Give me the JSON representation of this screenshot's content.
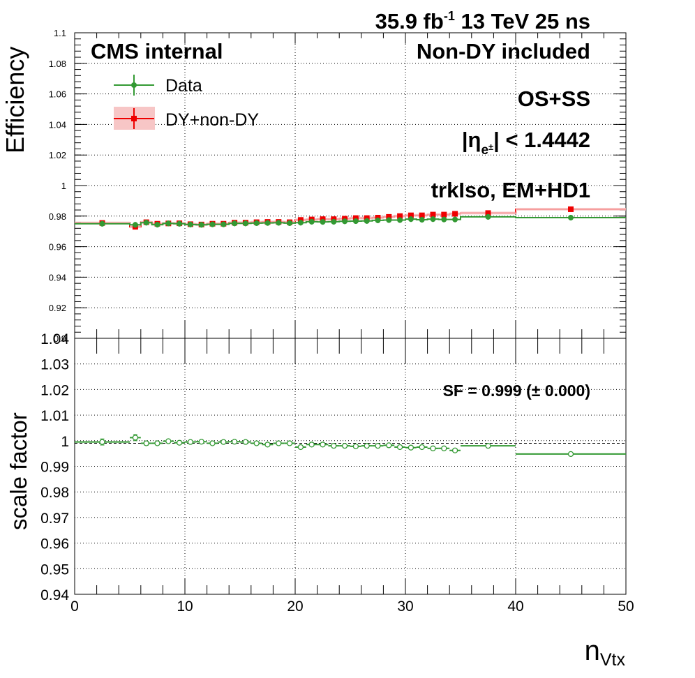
{
  "header": {
    "lumi_value": "35.9 fb",
    "lumi_exp": "-1",
    "energy": "13 TeV 25 ns"
  },
  "labels": {
    "experiment": "CMS internal",
    "sample": "Non-DY included",
    "charge": "OS+SS",
    "eta_prefix": "|η",
    "eta_sub": "e",
    "eta_subsup": "±",
    "eta_suffix": "| < 1.4442",
    "selection": "trkIso, EM+HD1",
    "sf_text": "SF = 0.999 (± 0.000)"
  },
  "colors": {
    "data": "#339933",
    "mc": "#ee0000",
    "mc_band": "#f7c6c6",
    "axis": "#000000"
  },
  "chart_data": [
    {
      "type": "scatter",
      "panel": "top",
      "ylabel": "Efficiency",
      "xlim": [
        0,
        50
      ],
      "ylim": [
        0.9,
        1.1
      ],
      "yticks": [
        "0.9",
        "0.92",
        "0.94",
        "0.96",
        "0.98",
        "1",
        "1.02",
        "1.04",
        "1.06",
        "1.08",
        "1.1"
      ],
      "legend": {
        "position": "top-left",
        "entries": [
          "Data",
          "DY+non-DY"
        ]
      },
      "bins": [
        [
          0,
          5
        ],
        [
          5,
          6
        ],
        [
          6,
          7
        ],
        [
          7,
          8
        ],
        [
          8,
          9
        ],
        [
          9,
          10
        ],
        [
          10,
          11
        ],
        [
          11,
          12
        ],
        [
          12,
          13
        ],
        [
          13,
          14
        ],
        [
          14,
          15
        ],
        [
          15,
          16
        ],
        [
          16,
          17
        ],
        [
          17,
          18
        ],
        [
          18,
          19
        ],
        [
          19,
          20
        ],
        [
          20,
          21
        ],
        [
          21,
          22
        ],
        [
          22,
          23
        ],
        [
          23,
          24
        ],
        [
          24,
          25
        ],
        [
          25,
          26
        ],
        [
          26,
          27
        ],
        [
          27,
          28
        ],
        [
          28,
          29
        ],
        [
          29,
          30
        ],
        [
          30,
          31
        ],
        [
          31,
          32
        ],
        [
          32,
          33
        ],
        [
          33,
          34
        ],
        [
          34,
          35
        ],
        [
          35,
          40
        ],
        [
          40,
          50
        ]
      ],
      "series": [
        {
          "name": "Data",
          "x": [
            2.5,
            5.5,
            6.5,
            7.5,
            8.5,
            9.5,
            10.5,
            11.5,
            12.5,
            13.5,
            14.5,
            15.5,
            16.5,
            17.5,
            18.5,
            19.5,
            20.5,
            21.5,
            22.5,
            23.5,
            24.5,
            25.5,
            26.5,
            27.5,
            28.5,
            29.5,
            30.5,
            31.5,
            32.5,
            33.5,
            34.5,
            37.5,
            45
          ],
          "y": [
            0.975,
            0.9743,
            0.9757,
            0.9744,
            0.9752,
            0.975,
            0.9745,
            0.9743,
            0.9746,
            0.9746,
            0.9752,
            0.9752,
            0.9754,
            0.9755,
            0.9756,
            0.9754,
            0.9757,
            0.9763,
            0.9762,
            0.9763,
            0.9766,
            0.9767,
            0.9768,
            0.9772,
            0.9774,
            0.9774,
            0.978,
            0.9776,
            0.978,
            0.9778,
            0.9778,
            0.9795,
            0.979
          ]
        },
        {
          "name": "DY+non-DY",
          "x": [
            2.5,
            5.5,
            6.5,
            7.5,
            8.5,
            9.5,
            10.5,
            11.5,
            12.5,
            13.5,
            14.5,
            15.5,
            16.5,
            17.5,
            18.5,
            19.5,
            20.5,
            21.5,
            22.5,
            23.5,
            24.5,
            25.5,
            26.5,
            27.5,
            28.5,
            29.5,
            30.5,
            31.5,
            32.5,
            33.5,
            34.5,
            37.5,
            45
          ],
          "y": [
            0.9755,
            0.973,
            0.976,
            0.975,
            0.9752,
            0.9753,
            0.9747,
            0.9745,
            0.975,
            0.975,
            0.9757,
            0.9757,
            0.976,
            0.9762,
            0.9762,
            0.976,
            0.9775,
            0.9778,
            0.978,
            0.978,
            0.9783,
            0.9787,
            0.9787,
            0.979,
            0.9795,
            0.98,
            0.9805,
            0.9805,
            0.981,
            0.981,
            0.9815,
            0.982,
            0.9845
          ]
        }
      ]
    },
    {
      "type": "scatter",
      "panel": "bottom",
      "ylabel": "scale factor",
      "xlabel_main": "n",
      "xlabel_sub": "Vtx",
      "xlim": [
        0,
        50
      ],
      "ylim": [
        0.94,
        1.04
      ],
      "xticks": [
        "0",
        "10",
        "20",
        "30",
        "40",
        "50"
      ],
      "yticks": [
        "0.94",
        "0.95",
        "0.96",
        "0.97",
        "0.98",
        "0.99",
        "1",
        "1.01",
        "1.02",
        "1.03",
        "1.04"
      ],
      "reference_line": 0.999,
      "series": [
        {
          "name": "SF",
          "x": [
            2.5,
            5.5,
            6.5,
            7.5,
            8.5,
            9.5,
            10.5,
            11.5,
            12.5,
            13.5,
            14.5,
            15.5,
            16.5,
            17.5,
            18.5,
            19.5,
            20.5,
            21.5,
            22.5,
            23.5,
            24.5,
            25.5,
            26.5,
            27.5,
            28.5,
            29.5,
            30.5,
            31.5,
            32.5,
            33.5,
            34.5,
            37.5,
            45
          ],
          "y": [
            0.9995,
            1.0012,
            0.999,
            0.999,
            0.9998,
            0.9992,
            0.9995,
            0.9996,
            0.999,
            0.9995,
            0.9996,
            0.9995,
            0.999,
            0.9985,
            0.999,
            0.999,
            0.9975,
            0.9985,
            0.9985,
            0.998,
            0.998,
            0.9978,
            0.998,
            0.998,
            0.9982,
            0.9975,
            0.9973,
            0.9975,
            0.997,
            0.997,
            0.9962,
            0.998,
            0.9948
          ],
          "yerr": [
            0.0012,
            0.0012,
            0.0008,
            0.0007,
            0.0005,
            0.0005,
            0.0005,
            0.0004,
            0.0004,
            0.0004,
            0.0004,
            0.0004,
            0.0004,
            0.0004,
            0.0004,
            0.0004,
            0.0004,
            0.0004,
            0.0004,
            0.0004,
            0.0004,
            0.0004,
            0.0004,
            0.0004,
            0.0004,
            0.0004,
            0.0004,
            0.0004,
            0.0004,
            0.0004,
            0.0004,
            0.0004,
            0.0003
          ]
        }
      ]
    }
  ]
}
